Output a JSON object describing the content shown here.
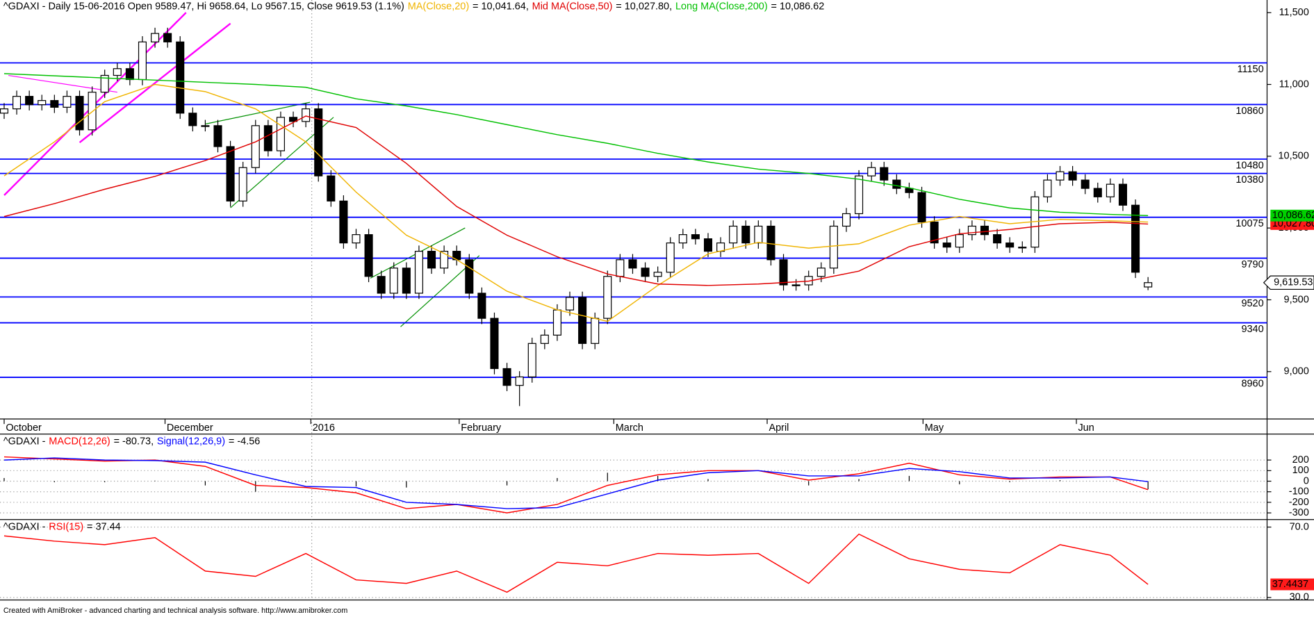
{
  "chart_data": [
    {
      "type": "candlestick",
      "title": "^GDAXI - Daily 15-06-2016 Open 9589.47, Hi 9658.64, Lo 9567.15, Close 9619.53 (1.1%)",
      "xlim": [
        -0.33,
        100.47
      ],
      "xticks": [
        {
          "value": 0,
          "label": "October"
        },
        {
          "value": 12.8,
          "label": "December"
        },
        {
          "value": 24.4,
          "label": "2016"
        },
        {
          "value": 36.2,
          "label": "February"
        },
        {
          "value": 48.5,
          "label": "March"
        },
        {
          "value": 60.7,
          "label": "April"
        },
        {
          "value": 73.1,
          "label": "May"
        },
        {
          "value": 85.3,
          "label": "Jun"
        }
      ],
      "ylim": [
        8670,
        11588
      ],
      "yticks": [
        {
          "value": 9000,
          "label": "9,000"
        },
        {
          "value": 9500,
          "label": "9,500"
        },
        {
          "value": 10000,
          "label": "10,000"
        },
        {
          "value": 10500,
          "label": "10,500"
        },
        {
          "value": 11000,
          "label": "11,000"
        },
        {
          "value": 11500,
          "label": "11,500"
        }
      ],
      "levels": [
        11150,
        10860,
        10480,
        10380,
        10075,
        9790,
        9520,
        9340,
        8960
      ],
      "level_color": "#0000ff",
      "open": [
        10800,
        10830,
        10917,
        10859,
        10888,
        10841,
        10917,
        10684,
        10946,
        11063,
        11110,
        11034,
        11296,
        11355,
        11296,
        10800,
        10713,
        10713,
        10567,
        10188,
        10421,
        10713,
        10538,
        10771,
        10742,
        10830,
        10363,
        10188,
        9896,
        9954,
        9663,
        9546,
        9721,
        9546,
        9838,
        9721,
        9838,
        9779,
        9546,
        9371,
        9021,
        8904,
        8963,
        9196,
        9254,
        9429,
        9517,
        9196,
        9371,
        9663,
        9779,
        9721,
        9663,
        9692,
        9896,
        9954,
        9925,
        9838,
        9896,
        10013,
        9896,
        10013,
        9779,
        9604,
        9604,
        9663,
        9721,
        10013,
        10100,
        10363,
        10421,
        10334,
        10276,
        10247,
        10042,
        9896,
        9867,
        9954,
        10013,
        9954,
        9896,
        9867,
        9867,
        10217,
        10334,
        10392,
        10334,
        10276,
        10217,
        10305,
        10159,
        9589.47
      ],
      "high": [
        10870,
        10957,
        10957,
        10928,
        10928,
        10957,
        10957,
        10986,
        11103,
        11150,
        11150,
        11336,
        11395,
        11395,
        11336,
        10840,
        10753,
        10753,
        10607,
        10461,
        10753,
        10753,
        10811,
        10811,
        10870,
        10870,
        10403,
        10228,
        9994,
        9994,
        9703,
        9761,
        9761,
        9878,
        9878,
        9878,
        9878,
        9819,
        9586,
        9411,
        9061,
        9003,
        9236,
        9294,
        9469,
        9557,
        9557,
        9411,
        9703,
        9819,
        9819,
        9761,
        9732,
        9936,
        9994,
        9994,
        9965,
        9936,
        10053,
        10053,
        10053,
        10053,
        9819,
        9644,
        9703,
        9761,
        10053,
        10140,
        10403,
        10461,
        10461,
        10374,
        10316,
        10287,
        10082,
        9936,
        9994,
        10053,
        10053,
        9994,
        9936,
        9907,
        10257,
        10374,
        10432,
        10432,
        10374,
        10316,
        10345,
        10345,
        10199,
        9658.64
      ],
      "low": [
        10760,
        10790,
        10819,
        10819,
        10801,
        10801,
        10644,
        10644,
        10906,
        11023,
        10994,
        10994,
        11256,
        11256,
        10760,
        10673,
        10673,
        10527,
        10148,
        10148,
        10381,
        10498,
        10498,
        10702,
        10702,
        10323,
        10148,
        9856,
        9856,
        9623,
        9506,
        9506,
        9506,
        9506,
        9681,
        9681,
        9739,
        9506,
        9331,
        8981,
        8864,
        8760,
        8923,
        9156,
        9214,
        9389,
        9156,
        9156,
        9331,
        9623,
        9681,
        9623,
        9623,
        9652,
        9856,
        9885,
        9798,
        9798,
        9856,
        9856,
        9856,
        9739,
        9564,
        9564,
        9564,
        9623,
        9681,
        9973,
        10060,
        10323,
        10294,
        10236,
        10207,
        10002,
        9856,
        9827,
        9827,
        9914,
        9914,
        9856,
        9827,
        9827,
        9827,
        10177,
        10294,
        10294,
        10236,
        10177,
        10177,
        10119,
        9652,
        9567.15
      ],
      "close": [
        10830,
        10917,
        10859,
        10888,
        10841,
        10917,
        10684,
        10946,
        11063,
        11110,
        11034,
        11296,
        11355,
        11296,
        10800,
        10713,
        10713,
        10567,
        10188,
        10421,
        10713,
        10538,
        10771,
        10742,
        10830,
        10363,
        10188,
        9896,
        9954,
        9663,
        9546,
        9721,
        9546,
        9838,
        9721,
        9838,
        9779,
        9546,
        9371,
        9021,
        8904,
        8963,
        9196,
        9254,
        9429,
        9517,
        9196,
        9371,
        9663,
        9779,
        9721,
        9663,
        9692,
        9896,
        9954,
        9925,
        9838,
        9896,
        10013,
        9896,
        10013,
        9779,
        9604,
        9604,
        9663,
        9721,
        10013,
        10100,
        10363,
        10421,
        10334,
        10276,
        10247,
        10042,
        9896,
        9867,
        9954,
        10013,
        9954,
        9896,
        9867,
        9867,
        10217,
        10334,
        10392,
        10334,
        10276,
        10217,
        10305,
        10159,
        9692,
        9619.53
      ],
      "close_label": "9,619.53",
      "series": [
        {
          "name": "MA(Close,20)",
          "legend_text": "= 10,041.64,",
          "last_label": "10,041.64",
          "color": "#f0b400",
          "tag_color": "#ffc800",
          "x": [
            0,
            4,
            8,
            12,
            16,
            20,
            24,
            28,
            32,
            36,
            40,
            44,
            48,
            52,
            56,
            60,
            64,
            68,
            72,
            76,
            80,
            84,
            88,
            91
          ],
          "values": [
            10363,
            10600,
            10880,
            11000,
            10950,
            10830,
            10600,
            10250,
            9950,
            9780,
            9560,
            9430,
            9350,
            9600,
            9820,
            9900,
            9860,
            9890,
            10020,
            10080,
            10030,
            10060,
            10050,
            10041.64
          ]
        },
        {
          "name": "Mid MA(Close,50)",
          "legend_text": "= 10,027.80,",
          "last_label": "10,027.80",
          "color": "#e00000",
          "tag_color": "#ff1a1a",
          "x": [
            0,
            4,
            8,
            12,
            16,
            20,
            24,
            28,
            32,
            36,
            40,
            44,
            48,
            52,
            56,
            60,
            64,
            68,
            72,
            76,
            80,
            84,
            88,
            91
          ],
          "values": [
            10080,
            10170,
            10270,
            10360,
            10470,
            10600,
            10780,
            10700,
            10450,
            10150,
            9950,
            9800,
            9680,
            9610,
            9600,
            9610,
            9630,
            9700,
            9870,
            9960,
            9990,
            10030,
            10040,
            10027.8
          ]
        },
        {
          "name": "Long MA(Close,200)",
          "legend_text": "= 10,086.62",
          "last_label": "10,086.62",
          "color": "#00c000",
          "tag_color": "#00d000",
          "x": [
            0,
            4,
            8,
            12,
            16,
            20,
            24,
            28,
            32,
            36,
            40,
            44,
            48,
            52,
            56,
            60,
            64,
            68,
            72,
            76,
            80,
            84,
            88,
            91
          ],
          "values": [
            11075,
            11060,
            11045,
            11030,
            11015,
            11000,
            10980,
            10900,
            10850,
            10790,
            10720,
            10650,
            10590,
            10520,
            10460,
            10410,
            10380,
            10340,
            10280,
            10200,
            10140,
            10110,
            10095,
            10086.62
          ]
        }
      ]
    },
    {
      "type": "line",
      "title": "^GDAXI -",
      "ylim": [
        -363,
        430
      ],
      "yticks": [
        200,
        100,
        0,
        -100,
        -200,
        -300
      ],
      "histogram": {
        "color": "#000000",
        "x": [
          0,
          4,
          8,
          12,
          16,
          20,
          24,
          28,
          32,
          36,
          40,
          44,
          48,
          52,
          56,
          60,
          64,
          68,
          72,
          76,
          80,
          84,
          88,
          91
        ],
        "values": [
          30,
          -10,
          -10,
          5,
          -40,
          -100,
          -10,
          -50,
          -60,
          0,
          -40,
          30,
          80,
          50,
          20,
          0,
          -40,
          20,
          50,
          -30,
          -10,
          10,
          0,
          -76.17
        ]
      },
      "series": [
        {
          "name": "MACD(12,26)",
          "legend_text": "= -80.73,",
          "color": "#ff0000",
          "x": [
            0,
            4,
            8,
            12,
            16,
            20,
            24,
            28,
            32,
            36,
            40,
            44,
            48,
            52,
            56,
            60,
            64,
            68,
            72,
            76,
            80,
            84,
            88,
            91
          ],
          "values": [
            230,
            210,
            190,
            200,
            140,
            -40,
            -60,
            -110,
            -260,
            -220,
            -300,
            -220,
            -40,
            60,
            100,
            100,
            10,
            70,
            170,
            60,
            20,
            40,
            40,
            -80.73
          ]
        },
        {
          "name": "Signal(12,26,9)",
          "legend_text": "= -4.56",
          "color": "#0000ff",
          "x": [
            0,
            4,
            8,
            12,
            16,
            20,
            24,
            28,
            32,
            36,
            40,
            44,
            48,
            52,
            56,
            60,
            64,
            68,
            72,
            76,
            80,
            84,
            88,
            91
          ],
          "values": [
            200,
            220,
            200,
            195,
            180,
            60,
            -50,
            -60,
            -200,
            -220,
            -260,
            -250,
            -120,
            10,
            80,
            100,
            50,
            50,
            120,
            90,
            30,
            30,
            40,
            -4.56
          ]
        }
      ]
    },
    {
      "type": "line",
      "title": "^GDAXI -",
      "ylim": [
        28.57,
        73.33
      ],
      "yticks": [
        {
          "value": 70,
          "label": "70.0"
        },
        {
          "value": 30,
          "label": "30.0"
        }
      ],
      "series": [
        {
          "name": "RSI(15)",
          "legend_text": "= 37.44",
          "last_label": "37.4437",
          "color": "#ff0000",
          "tag_color": "#ff1a1a",
          "x": [
            0,
            4,
            8,
            12,
            16,
            20,
            24,
            28,
            32,
            36,
            40,
            44,
            48,
            52,
            56,
            60,
            64,
            68,
            72,
            76,
            80,
            84,
            88,
            91
          ],
          "values": [
            65,
            62,
            60,
            64,
            45,
            42,
            55,
            40,
            38,
            45,
            33,
            50,
            48,
            55,
            54,
            55,
            38,
            66,
            52,
            46,
            44,
            60,
            54,
            37.44
          ]
        }
      ]
    }
  ],
  "footer": "Created with AmiBroker - advanced charting and technical analysis software. http://www.amibroker.com"
}
